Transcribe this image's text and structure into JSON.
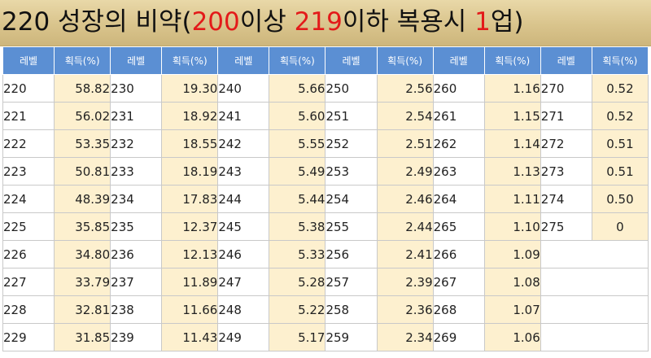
{
  "title": {
    "part1": "220 성장의 비약(",
    "red1": "200",
    "part2": "이상 ",
    "red2": "219",
    "part3": "이하 복용시 ",
    "red3": "1",
    "part4": "업)"
  },
  "header": {
    "level": "레벨",
    "gain": "획득(%)"
  },
  "groups": [
    {
      "levels": [
        "220",
        "221",
        "222",
        "223",
        "224",
        "225",
        "226",
        "227",
        "228",
        "229"
      ],
      "gains": [
        "58.82",
        "56.02",
        "53.35",
        "50.81",
        "48.39",
        "35.85",
        "34.80",
        "33.79",
        "32.81",
        "31.85"
      ]
    },
    {
      "levels": [
        "230",
        "231",
        "232",
        "233",
        "234",
        "235",
        "236",
        "237",
        "238",
        "239"
      ],
      "gains": [
        "19.30",
        "18.92",
        "18.55",
        "18.19",
        "17.83",
        "12.37",
        "12.13",
        "11.89",
        "11.66",
        "11.43"
      ]
    },
    {
      "levels": [
        "240",
        "241",
        "242",
        "243",
        "244",
        "245",
        "246",
        "247",
        "248",
        "249"
      ],
      "gains": [
        "5.66",
        "5.60",
        "5.55",
        "5.49",
        "5.44",
        "5.38",
        "5.33",
        "5.28",
        "5.22",
        "5.17"
      ]
    },
    {
      "levels": [
        "250",
        "251",
        "252",
        "253",
        "254",
        "255",
        "256",
        "257",
        "258",
        "259"
      ],
      "gains": [
        "2.56",
        "2.54",
        "2.51",
        "2.49",
        "2.46",
        "2.44",
        "2.41",
        "2.39",
        "2.36",
        "2.34"
      ]
    },
    {
      "levels": [
        "260",
        "261",
        "262",
        "263",
        "264",
        "265",
        "266",
        "267",
        "268",
        "269"
      ],
      "gains": [
        "1.16",
        "1.15",
        "1.14",
        "1.13",
        "1.11",
        "1.10",
        "1.09",
        "1.08",
        "1.07",
        "1.06"
      ]
    },
    {
      "levels": [
        "270",
        "271",
        "272",
        "273",
        "274",
        "275"
      ],
      "gains": [
        "0.52",
        "0.52",
        "0.51",
        "0.51",
        "0.50",
        "0"
      ]
    }
  ]
}
